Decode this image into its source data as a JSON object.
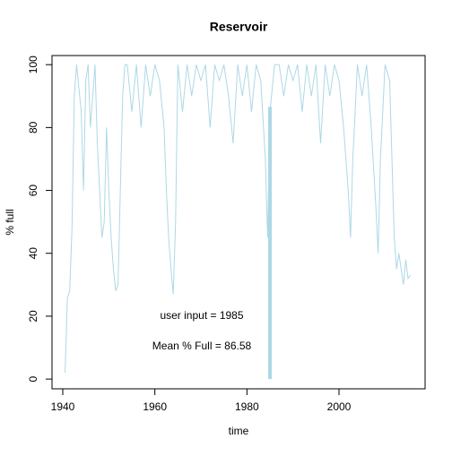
{
  "chart_data": {
    "type": "line",
    "title": "Reservoir",
    "xlabel": "time",
    "ylabel": "% full",
    "series": [
      {
        "name": "% full",
        "color": "#add8e6",
        "x": [
          1940.5,
          1941,
          1941.5,
          1942,
          1942.5,
          1943,
          1944,
          1944.5,
          1945,
          1945.5,
          1946,
          1947,
          1947.5,
          1948,
          1948.5,
          1949,
          1949.5,
          1950,
          1950.5,
          1951,
          1951.5,
          1952,
          1952.5,
          1953,
          1953.5,
          1954,
          1955,
          1956,
          1957,
          1958,
          1959,
          1960,
          1961,
          1962,
          1962.5,
          1963,
          1963.5,
          1964,
          1964.5,
          1965,
          1966,
          1967,
          1968,
          1969,
          1970,
          1971,
          1972,
          1973,
          1974,
          1975,
          1976,
          1977,
          1978,
          1979,
          1980,
          1981,
          1982,
          1983,
          1984,
          1984.5,
          1985,
          1986,
          1987,
          1988,
          1989,
          1990,
          1991,
          1992,
          1993,
          1994,
          1995,
          1996,
          1997,
          1998,
          1999,
          2000,
          2001,
          2002,
          2002.5,
          2003,
          2004,
          2005,
          2006,
          2007,
          2008,
          2008.5,
          2009,
          2010,
          2011,
          2011.5,
          2012,
          2012.5,
          2013,
          2014,
          2014.5,
          2015,
          2015.5
        ],
        "values": [
          2,
          26,
          28,
          48,
          90,
          100,
          85,
          60,
          95,
          100,
          80,
          100,
          75,
          60,
          45,
          50,
          80,
          60,
          45,
          35,
          28,
          30,
          60,
          90,
          100,
          100,
          85,
          100,
          80,
          100,
          90,
          100,
          95,
          80,
          60,
          45,
          35,
          27,
          50,
          100,
          85,
          100,
          90,
          100,
          95,
          100,
          80,
          100,
          95,
          100,
          90,
          75,
          100,
          90,
          100,
          85,
          100,
          95,
          70,
          45,
          85,
          100,
          100,
          90,
          100,
          95,
          100,
          85,
          100,
          90,
          100,
          75,
          100,
          90,
          100,
          95,
          80,
          60,
          45,
          70,
          100,
          90,
          100,
          80,
          55,
          40,
          70,
          100,
          95,
          70,
          45,
          35,
          40,
          30,
          38,
          32,
          33
        ]
      }
    ],
    "highlight": {
      "x": 1985,
      "value": 86.58,
      "color": "#add8e6"
    },
    "annotations": [
      "user input =  1985",
      "Mean % Full =  86.58"
    ],
    "xlim": [
      1937.66,
      2018.7
    ],
    "xticks": [
      1940,
      1960,
      1980,
      2000
    ],
    "ylim": [
      -3.1,
      102.9
    ],
    "yticks": [
      0,
      20,
      40,
      60,
      80,
      100
    ]
  }
}
